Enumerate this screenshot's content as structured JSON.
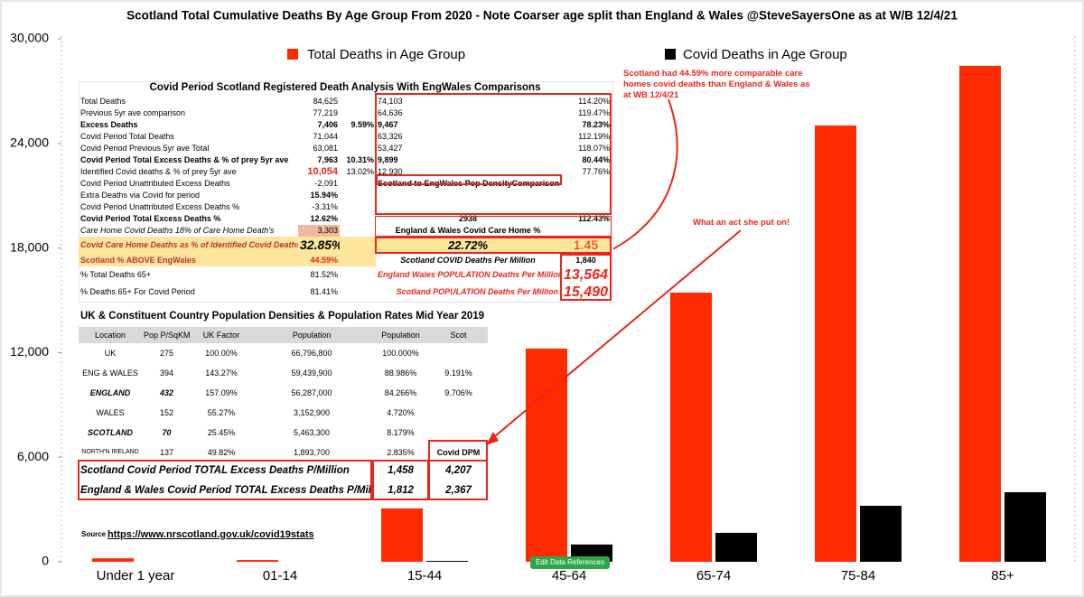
{
  "chart_data": {
    "type": "bar",
    "title": "Scotland Total Cumulative Deaths By Age Group From 2020  - Note Coarser age split than England & Wales @SteveSayersOne as at W/B 12/4/21",
    "categories": [
      "Under 1 year",
      "01-14",
      "15-44",
      "45-64",
      "65-74",
      "75-84",
      "85+"
    ],
    "series": [
      {
        "name": "Total Deaths in Age Group",
        "color": "#ff2a00",
        "values": [
          200,
          100,
          3060,
          12230,
          15440,
          25030,
          28450
        ]
      },
      {
        "name": "Covid Deaths in Age Group",
        "color": "#000000",
        "values": [
          0,
          0,
          50,
          990,
          1660,
          3210,
          3990
        ]
      }
    ],
    "ylim": [
      0,
      30000
    ],
    "yticks": [
      0,
      {
        "value": 6000,
        "label": "6,000"
      },
      {
        "value": 12000,
        "label": "12,000"
      },
      {
        "value": 18000,
        "label": "18,000"
      },
      {
        "value": 24000,
        "label": "24,000"
      },
      {
        "value": 30000,
        "label": "30,000"
      }
    ],
    "grid": false
  },
  "analysis_table": {
    "title": "Covid Period Scotland Registered Death Analysis With EngWales Comparisons",
    "rows": [
      {
        "label": "Total Deaths",
        "value": "84,625",
        "ew": "74,103",
        "ew_pct": "114.20%"
      },
      {
        "label": "Previous 5yr ave comparison",
        "value": "77,219",
        "ew": "64,636",
        "ew_pct": "119.47%"
      },
      {
        "label": "Excess Deaths",
        "value": "7,406",
        "pct": "9.59%",
        "ew": "9,467",
        "ew_pct": "78.23%"
      },
      {
        "label": "Covid Period Total Deaths",
        "value": "71,044",
        "ew": "63,326",
        "ew_pct": "112.19%"
      },
      {
        "label": "Covid Period Previous 5yr ave Total",
        "value": "63,081",
        "ew": "53,427",
        "ew_pct": "118.07%"
      },
      {
        "label": "Covid Period Total Excess Deaths & % of prey 5yr ave",
        "value": "7,963",
        "pct": "10.31%",
        "ew": "9,899",
        "ew_pct": "80.44%"
      },
      {
        "label": "Identified Covid deaths & % of prey 5yr ave",
        "value": "10,054",
        "pct": "13.02%",
        "ew": "12,930",
        "ew_pct": "77.76%"
      },
      {
        "label": "Covid Period Unattributed Excess Deaths",
        "value": "-2,091",
        "ew": "Scotland to EngWales Pop DensityComparisons"
      },
      {
        "label": "Extra Deaths via Covid for period",
        "value": "15.94%"
      },
      {
        "label": "Covid Period Unattributed Excess Deaths %",
        "value": "-3.31%"
      },
      {
        "label": "Covid Period Total Excess Deaths  %",
        "value": "12.62%",
        "ew": "2938",
        "ew_pct": "112.43%"
      },
      {
        "label": "Care Home Covid Deaths 18% of Care Home Death's",
        "value": "3,303",
        "ew": "England & Wales Covid Care Home %"
      },
      {
        "label": "Covid Care Home Deaths as % of Identified Covid Deaths",
        "value": "32.85%",
        "ew": "22.72%",
        "ew_pct": "1.45"
      },
      {
        "label": "Scotland % ABOVE EngWales",
        "value": "44.59%",
        "ew": "Scotland COVID Deaths Per Million",
        "ew_pct": "1,840"
      },
      {
        "label": "% Total Deaths 65+",
        "value": "81.52%",
        "ew": "England Wales POPULATION Deaths Per Million",
        "ew_pct": "13,564"
      },
      {
        "label": "% Deaths 65+ For Covid Period",
        "value": "81.41%",
        "ew": "Scotland  POPULATION Deaths Per Million",
        "ew_pct": "15,490"
      }
    ]
  },
  "population_table": {
    "title": "UK & Constituent Country Population Densities & Population Rates Mid Year 2019",
    "header": [
      "Location",
      "Pop P/SqKM",
      "UK Factor",
      "Population",
      "Population",
      "Scot"
    ],
    "rows": [
      [
        "UK",
        "275",
        "100.00%",
        "66,796,800",
        "100.000%"
      ],
      [
        "ENG & WALES",
        "394",
        "143.27%",
        "59,439,900",
        "88.986%",
        "9.191%"
      ],
      [
        "ENGLAND",
        "432",
        "157.09%",
        "56,287,000",
        "84.266%",
        "9.706%"
      ],
      [
        "WALES",
        "152",
        "55.27%",
        "3,152,900",
        "4.720%"
      ],
      [
        "SCOTLAND",
        "70",
        "25.45%",
        "5,463,300",
        "8.179%"
      ],
      [
        "NORTH'N IRELAND",
        "137",
        "49.82%",
        "1,893,700",
        "2.835%",
        "Covid DPM"
      ]
    ],
    "totals": [
      [
        "Scotland Covid Period TOTAL Excess Deaths P/Million",
        "1,458",
        "4,207"
      ],
      [
        "England & Wales Covid Period TOTAL Excess Deaths P/Million",
        "1,812",
        "2,367"
      ]
    ]
  },
  "annotations": [
    "Scotland had 44.59% more comparable care homes covid deaths than England & Wales as at WB 12/4/21",
    "What an act she put on!"
  ],
  "source": {
    "label": "Source",
    "url": "https://www.nrscotland.gov.uk/covid19stats"
  },
  "button": "Edit Data References"
}
